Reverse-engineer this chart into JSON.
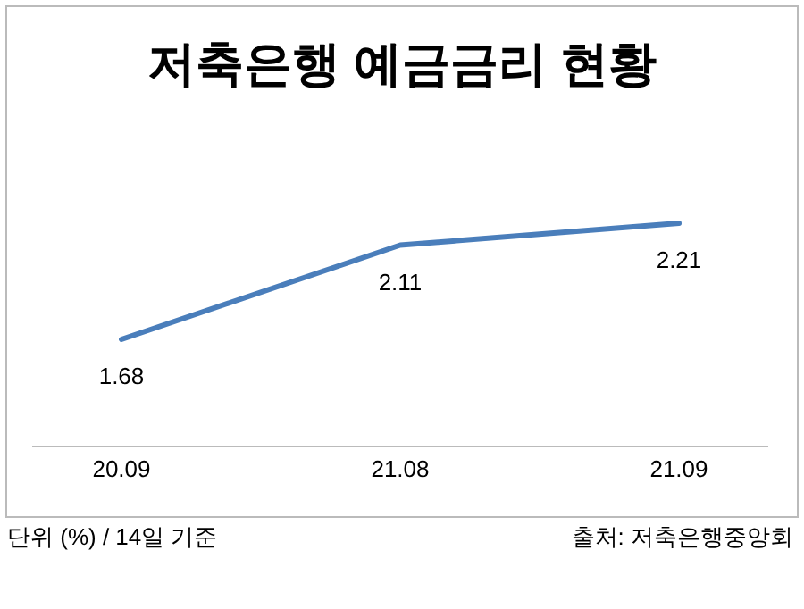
{
  "chart_data": {
    "type": "line",
    "title": "저축은행 예금금리 현황",
    "categories": [
      "20.09",
      "21.08",
      "21.09"
    ],
    "series": [
      {
        "color": "#4a7ebb",
        "values": [
          1.68,
          2.11,
          2.21
        ]
      }
    ],
    "data_labels": true,
    "marker": "none",
    "line_style": "solid",
    "annotations": [
      "단위 (%) / 14일 기준",
      "출처: 저축은행중앙회"
    ]
  }
}
